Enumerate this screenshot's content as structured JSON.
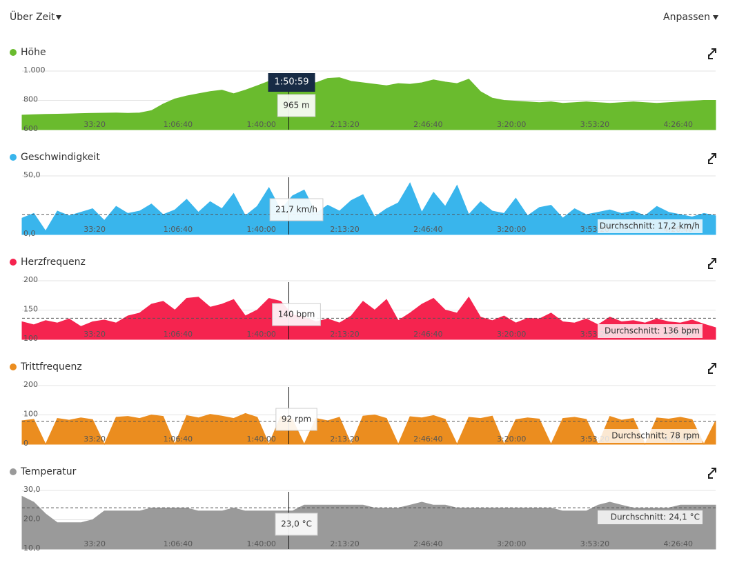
{
  "ui": {
    "left_menu": "Über Zeit",
    "right_menu": "Anpassen"
  },
  "cursor": {
    "x": 6659,
    "label": "1:50:59"
  },
  "time_axis": {
    "xlim": [
      260,
      16898
    ],
    "xticks": [
      {
        "value": 2000,
        "label": "33:20"
      },
      {
        "value": 4000,
        "label": "1:06:40"
      },
      {
        "value": 6000,
        "label": "1:40:00"
      },
      {
        "value": 8000,
        "label": "2:13:20"
      },
      {
        "value": 10000,
        "label": "2:46:40"
      },
      {
        "value": 12000,
        "label": "3:20:00"
      },
      {
        "value": 14000,
        "label": "3:53:20"
      },
      {
        "value": 16000,
        "label": "4:26:40"
      }
    ],
    "x": [
      260,
      542,
      824,
      1106,
      1388,
      1670,
      1952,
      2234,
      2516,
      2798,
      3080,
      3362,
      3644,
      3926,
      4208,
      4490,
      4772,
      5054,
      5336,
      5618,
      5900,
      6182,
      6464,
      6746,
      7028,
      7310,
      7592,
      7874,
      8156,
      8438,
      8720,
      9002,
      9284,
      9566,
      9848,
      10130,
      10412,
      10694,
      10976,
      11258,
      11540,
      11822,
      12104,
      12386,
      12668,
      12950,
      13232,
      13514,
      13796,
      14078,
      14360,
      14642,
      14924,
      15206,
      15488,
      15770,
      16052,
      16334,
      16616,
      16898
    ]
  },
  "chart_data": [
    {
      "type": "area",
      "title": "Höhe",
      "color": "#6abb2e",
      "ylim": [
        600,
        1000
      ],
      "yticks": [
        600,
        800,
        {
          "value": 1000,
          "label": "1.000"
        }
      ],
      "cursor_label": "965 m",
      "values": [
        700,
        702,
        705,
        706,
        708,
        710,
        712,
        713,
        714,
        712,
        714,
        730,
        775,
        810,
        830,
        845,
        860,
        870,
        845,
        870,
        900,
        930,
        950,
        965,
        940,
        920,
        950,
        955,
        930,
        920,
        910,
        900,
        915,
        910,
        920,
        940,
        925,
        915,
        945,
        860,
        815,
        800,
        795,
        790,
        785,
        790,
        780,
        785,
        790,
        785,
        780,
        785,
        790,
        785,
        780,
        785,
        790,
        795,
        800,
        800
      ]
    },
    {
      "type": "area",
      "title": "Geschwindigkeit",
      "color": "#39b5ec",
      "ylim": [
        0,
        50
      ],
      "yticks": [
        {
          "value": 0,
          "label": "0,0"
        },
        {
          "value": 50,
          "label": "50,0"
        }
      ],
      "cursor_label": "21,7 km/h",
      "average": 17.2,
      "average_label": "Durchschnitt: 17,2 km/h",
      "values": [
        14,
        18,
        3,
        20,
        16,
        19,
        22,
        12,
        24,
        18,
        20,
        26,
        17,
        21,
        30,
        19,
        28,
        22,
        35,
        16,
        24,
        40,
        21,
        33,
        38,
        18,
        25,
        20,
        29,
        34,
        15,
        22,
        27,
        44,
        19,
        36,
        24,
        42,
        17,
        28,
        20,
        18,
        31,
        16,
        23,
        25,
        14,
        22,
        17,
        19,
        21,
        18,
        20,
        16,
        24,
        19,
        17,
        15,
        18,
        16
      ]
    },
    {
      "type": "area",
      "title": "Herzfrequenz",
      "color": "#f5244f",
      "ylim": [
        100,
        200
      ],
      "yticks": [
        100,
        150,
        200
      ],
      "cursor_label": "140 bpm",
      "average": 136,
      "average_label": "Durchschnitt: 136 bpm",
      "values": [
        130,
        125,
        132,
        128,
        135,
        122,
        130,
        133,
        128,
        140,
        145,
        160,
        165,
        150,
        170,
        172,
        155,
        160,
        168,
        140,
        150,
        170,
        165,
        142,
        138,
        130,
        135,
        128,
        140,
        165,
        150,
        168,
        132,
        145,
        160,
        170,
        150,
        145,
        172,
        138,
        132,
        140,
        128,
        136,
        135,
        145,
        130,
        128,
        135,
        125,
        138,
        130,
        132,
        128,
        135,
        130,
        128,
        133,
        126,
        120
      ]
    },
    {
      "type": "area",
      "title": "Trittfrequenz",
      "color": "#eb8d1f",
      "ylim": [
        0,
        200
      ],
      "yticks": [
        0,
        100,
        200
      ],
      "cursor_label": "92 rpm",
      "average": 78,
      "average_label": "Durchschnitt: 78 rpm",
      "values": [
        80,
        85,
        0,
        88,
        82,
        90,
        84,
        0,
        92,
        95,
        88,
        100,
        95,
        0,
        98,
        90,
        102,
        96,
        88,
        105,
        92,
        0,
        95,
        85,
        0,
        88,
        80,
        92,
        0,
        96,
        100,
        88,
        0,
        94,
        90,
        98,
        85,
        0,
        92,
        88,
        96,
        0,
        84,
        90,
        86,
        0,
        88,
        92,
        85,
        0,
        95,
        82,
        88,
        0,
        90,
        86,
        92,
        84,
        0,
        80
      ]
    },
    {
      "type": "area",
      "title": "Temperatur",
      "color": "#9a9a9a",
      "ylim": [
        10,
        30
      ],
      "yticks": [
        {
          "value": 10,
          "label": "10,0"
        },
        {
          "value": 20,
          "label": "20,0"
        },
        {
          "value": 30,
          "label": "30,0"
        }
      ],
      "cursor_label": "23,0 °C",
      "average": 24.1,
      "average_label": "Durchschnitt: 24,1 °C",
      "values": [
        28,
        26,
        22,
        19,
        19,
        19,
        20,
        23,
        23,
        23,
        23,
        24,
        24,
        24,
        24,
        23,
        23,
        23,
        24,
        23,
        23,
        23,
        23,
        23,
        25,
        25,
        25,
        25,
        25,
        25,
        24,
        24,
        24,
        25,
        26,
        25,
        25,
        24,
        24,
        24,
        24,
        24,
        24,
        24,
        24,
        24,
        23,
        23,
        23,
        25,
        26,
        25,
        24,
        24,
        24,
        24,
        25,
        25,
        25,
        25
      ]
    }
  ]
}
